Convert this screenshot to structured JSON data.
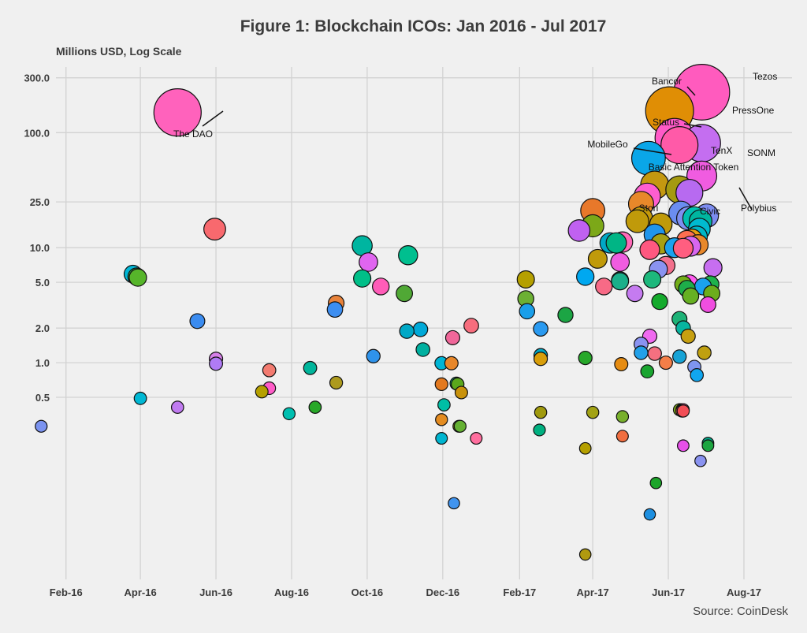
{
  "chart_data": {
    "type": "scatter",
    "title": "Figure 1: Blockchain ICOs: Jan 2016 - Jul 2017",
    "subtitle": "Millions USD, Log Scale",
    "source": "Source: CoinDesk",
    "y_scale": "log",
    "ylim": [
      0.02,
      450
    ],
    "xlim": [
      "2016-01-01",
      "2017-08-15"
    ],
    "grid": true,
    "legend": "none",
    "x_ticks": [
      {
        "date": "2016-02-01",
        "label": "Feb-16"
      },
      {
        "date": "2016-04-01",
        "label": "Apr-16"
      },
      {
        "date": "2016-06-01",
        "label": "Jun-16"
      },
      {
        "date": "2016-08-01",
        "label": "Aug-16"
      },
      {
        "date": "2016-10-01",
        "label": "Oct-16"
      },
      {
        "date": "2016-12-01",
        "label": "Dec-16"
      },
      {
        "date": "2017-02-01",
        "label": "Feb-17"
      },
      {
        "date": "2017-04-01",
        "label": "Apr-17"
      },
      {
        "date": "2017-06-01",
        "label": "Jun-17"
      },
      {
        "date": "2017-08-01",
        "label": "Aug-17"
      }
    ],
    "y_ticks": [
      {
        "value": 300,
        "label": "300.0"
      },
      {
        "value": 100,
        "label": "100.0"
      },
      {
        "value": 25,
        "label": "25.0"
      },
      {
        "value": 10,
        "label": "10.0"
      },
      {
        "value": 5,
        "label": "5.0"
      },
      {
        "value": 2,
        "label": "2.0"
      },
      {
        "value": 1,
        "label": "1.0"
      },
      {
        "value": 0.5,
        "label": "0.5"
      }
    ],
    "points": [
      {
        "date": "2016-01-12",
        "value": 0.28,
        "color": "#7B93F0"
      },
      {
        "date": "2016-03-26",
        "value": 5.9,
        "color": "#00B7D6"
      },
      {
        "date": "2016-03-29",
        "value": 5.6,
        "color": "#2FAA4A"
      },
      {
        "date": "2016-03-30",
        "value": 5.5,
        "color": "#56B52A"
      },
      {
        "date": "2016-04-01",
        "value": 0.49,
        "color": "#00B8D4"
      },
      {
        "date": "2016-05-01",
        "value": 0.41,
        "color": "#C07BF0"
      },
      {
        "date": "2016-05-01",
        "value": 150,
        "color": "#FF62BC",
        "label": "The DAO"
      },
      {
        "date": "2016-05-17",
        "value": 2.3,
        "color": "#3B8CF0"
      },
      {
        "date": "2016-05-31",
        "value": 14.5,
        "color": "#F8696E"
      },
      {
        "date": "2016-06-01",
        "value": 1.08,
        "color": "#D680E8"
      },
      {
        "date": "2016-06-01",
        "value": 0.98,
        "color": "#B07BF5"
      },
      {
        "date": "2016-07-08",
        "value": 0.56,
        "color": "#B5A000"
      },
      {
        "date": "2016-07-14",
        "value": 0.86,
        "color": "#F37B70"
      },
      {
        "date": "2016-07-14",
        "value": 0.6,
        "color": "#FF5CC8"
      },
      {
        "date": "2016-07-30",
        "value": 0.36,
        "color": "#00BFB0"
      },
      {
        "date": "2016-08-16",
        "value": 0.9,
        "color": "#00B59B"
      },
      {
        "date": "2016-08-20",
        "value": 0.41,
        "color": "#28A828"
      },
      {
        "date": "2016-09-06",
        "value": 0.67,
        "color": "#AD9A1E"
      },
      {
        "date": "2016-09-06",
        "value": 3.3,
        "color": "#E8823A"
      },
      {
        "date": "2016-09-05",
        "value": 2.9,
        "color": "#3D8EF0"
      },
      {
        "date": "2016-09-27",
        "value": 10.4,
        "color": "#00B5A0"
      },
      {
        "date": "2016-09-27",
        "value": 5.4,
        "color": "#00BF88"
      },
      {
        "date": "2016-10-02",
        "value": 7.5,
        "color": "#E065F0"
      },
      {
        "date": "2016-10-06",
        "value": 1.14,
        "color": "#2F93EB"
      },
      {
        "date": "2016-10-12",
        "value": 4.6,
        "color": "#FF5CB8"
      },
      {
        "date": "2016-10-31",
        "value": 4.0,
        "color": "#50A835"
      },
      {
        "date": "2016-11-02",
        "value": 1.88,
        "color": "#00A8C6"
      },
      {
        "date": "2016-11-03",
        "value": 8.6,
        "color": "#00BF8F"
      },
      {
        "date": "2016-11-13",
        "value": 1.95,
        "color": "#00A9D8"
      },
      {
        "date": "2016-11-15",
        "value": 1.3,
        "color": "#00B0A0"
      },
      {
        "date": "2016-11-30",
        "value": 0.99,
        "color": "#00B5D5"
      },
      {
        "date": "2016-11-30",
        "value": 0.65,
        "color": "#E3791F"
      },
      {
        "date": "2016-11-30",
        "value": 0.32,
        "color": "#E48C21"
      },
      {
        "date": "2016-11-30",
        "value": 0.22,
        "color": "#00B5D0"
      },
      {
        "date": "2016-12-02",
        "value": 0.43,
        "color": "#00BFA5"
      },
      {
        "date": "2016-12-08",
        "value": 0.99,
        "color": "#E8872A"
      },
      {
        "date": "2016-12-09",
        "value": 1.65,
        "color": "#F0679A"
      },
      {
        "date": "2016-12-10",
        "value": 0.06,
        "color": "#4094EF"
      },
      {
        "date": "2016-12-12",
        "value": 0.66,
        "color": "#0BB486"
      },
      {
        "date": "2016-12-13",
        "value": 0.65,
        "color": "#5BA81C"
      },
      {
        "date": "2016-12-14",
        "value": 0.28,
        "color": "#A09A0E"
      },
      {
        "date": "2016-12-15",
        "value": 0.28,
        "color": "#64B032"
      },
      {
        "date": "2016-12-16",
        "value": 0.55,
        "color": "#C9920B"
      },
      {
        "date": "2016-12-24",
        "value": 2.1,
        "color": "#F76D7D"
      },
      {
        "date": "2016-12-28",
        "value": 0.22,
        "color": "#FF6E9E"
      },
      {
        "date": "2017-02-06",
        "value": 5.3,
        "color": "#B5A000"
      },
      {
        "date": "2017-02-06",
        "value": 3.6,
        "color": "#6CB033"
      },
      {
        "date": "2017-02-07",
        "value": 2.8,
        "color": "#1A9FEA"
      },
      {
        "date": "2017-02-18",
        "value": 1.97,
        "color": "#2A9AF0"
      },
      {
        "date": "2017-02-18",
        "value": 1.16,
        "color": "#00A8C6"
      },
      {
        "date": "2017-02-18",
        "value": 1.08,
        "color": "#D89E0A"
      },
      {
        "date": "2017-02-18",
        "value": 0.37,
        "color": "#A09A0E"
      },
      {
        "date": "2017-02-17",
        "value": 0.26,
        "color": "#00B080"
      },
      {
        "date": "2017-03-10",
        "value": 2.6,
        "color": "#1CA544"
      },
      {
        "date": "2017-03-21",
        "value": 14.1,
        "color": "#C061F0"
      },
      {
        "date": "2017-03-26",
        "value": 5.6,
        "color": "#00A8F0"
      },
      {
        "date": "2017-03-26",
        "value": 1.1,
        "color": "#27A82A"
      },
      {
        "date": "2017-03-26",
        "value": 0.18,
        "color": "#B5A000"
      },
      {
        "date": "2017-03-26",
        "value": 0.0215,
        "color": "#B09A10"
      },
      {
        "date": "2017-04-01",
        "value": 21.0,
        "color": "#E8782A"
      },
      {
        "date": "2017-04-01",
        "value": 15.5,
        "color": "#7CA818"
      },
      {
        "date": "2017-04-01",
        "value": 0.37,
        "color": "#A2A214"
      },
      {
        "date": "2017-04-05",
        "value": 8.0,
        "color": "#C09A0A"
      },
      {
        "date": "2017-04-10",
        "value": 4.6,
        "color": "#F76A86"
      },
      {
        "date": "2017-04-15",
        "value": 11.0,
        "color": "#00A8C6"
      },
      {
        "date": "2017-04-20",
        "value": 11.0,
        "color": "#00B585"
      },
      {
        "date": "2017-04-25",
        "value": 11.2,
        "color": "#FF6AB8"
      },
      {
        "date": "2017-04-23",
        "value": 7.5,
        "color": "#F05CE0"
      },
      {
        "date": "2017-04-23",
        "value": 5.2,
        "color": "#00B890"
      },
      {
        "date": "2017-04-23",
        "value": 5.1,
        "color": "#1AAF8A"
      },
      {
        "date": "2017-04-24",
        "value": 0.97,
        "color": "#E68C12"
      },
      {
        "date": "2017-04-25",
        "value": 0.34,
        "color": "#78B02C"
      },
      {
        "date": "2017-04-25",
        "value": 0.23,
        "color": "#F06E40"
      },
      {
        "date": "2017-05-05",
        "value": 4.0,
        "color": "#C57BF0"
      },
      {
        "date": "2017-05-07",
        "value": 17.0,
        "color": "#C09A0A"
      },
      {
        "date": "2017-05-10",
        "value": 24.0,
        "color": "#E8882A"
      },
      {
        "date": "2017-05-10",
        "value": 18.0,
        "color": "#C59A0A"
      },
      {
        "date": "2017-05-10",
        "value": 1.45,
        "color": "#8A93F0"
      },
      {
        "date": "2017-05-10",
        "value": 1.22,
        "color": "#22A0E8"
      },
      {
        "date": "2017-05-15",
        "value": 28.0,
        "color": "#FF5ED0"
      },
      {
        "date": "2017-05-15",
        "value": 0.84,
        "color": "#1AA530"
      },
      {
        "date": "2017-05-17",
        "value": 9.6,
        "color": "#FF5880"
      },
      {
        "date": "2017-05-17",
        "value": 0.048,
        "color": "#1D8FE0"
      },
      {
        "date": "2017-05-17",
        "value": 1.7,
        "color": "#F06AF0"
      },
      {
        "date": "2017-05-16",
        "value": 60.0,
        "color": "#0AA6E8",
        "label": "MobileGo"
      },
      {
        "date": "2017-05-21",
        "value": 35.0,
        "color": "#C49810",
        "label": "Basic Attention Token"
      },
      {
        "date": "2017-05-21",
        "value": 13.0,
        "color": "#2095EB"
      },
      {
        "date": "2017-05-21",
        "value": 1.2,
        "color": "#F47080"
      },
      {
        "date": "2017-05-22",
        "value": 0.09,
        "color": "#1CA52A"
      },
      {
        "date": "2017-05-19",
        "value": 5.3,
        "color": "#1DB87C"
      },
      {
        "date": "2017-05-24",
        "value": 6.5,
        "color": "#8A93F0"
      },
      {
        "date": "2017-05-25",
        "value": 3.4,
        "color": "#14AA2C"
      },
      {
        "date": "2017-05-26",
        "value": 10.8,
        "color": "#A6A014"
      },
      {
        "date": "2017-05-30",
        "value": 7.0,
        "color": "#F3708C"
      },
      {
        "date": "2017-05-30",
        "value": 1.0,
        "color": "#F47E48"
      },
      {
        "date": "2017-06-02",
        "value": 155.0,
        "color": "#E08E05",
        "label": "Bancor"
      },
      {
        "date": "2017-06-06",
        "value": 90.0,
        "color": "#FF5AC8",
        "label": "Status"
      },
      {
        "date": "2017-06-10",
        "value": 78.0,
        "color": "#FF5AA8",
        "label": "TenX"
      },
      {
        "date": "2017-06-06",
        "value": 10.0,
        "color": "#1AA2EF"
      },
      {
        "date": "2017-06-10",
        "value": 32.0,
        "color": "#A59A10"
      },
      {
        "date": "2017-06-11",
        "value": 20.0,
        "color": "#6B8DF0"
      },
      {
        "date": "2017-06-10",
        "value": 2.4,
        "color": "#1DB277"
      },
      {
        "date": "2017-06-10",
        "value": 1.13,
        "color": "#16A3D6"
      },
      {
        "date": "2017-06-10",
        "value": 0.39,
        "color": "#80AC1A"
      },
      {
        "date": "2017-06-12",
        "value": 0.38,
        "color": "#F4646E"
      },
      {
        "date": "2017-06-12",
        "value": 0.39,
        "color": "#2FAA34"
      },
      {
        "date": "2017-06-13",
        "value": 0.39,
        "color": "#FF5EA0"
      },
      {
        "date": "2017-06-13",
        "value": 0.38,
        "color": "#F24E56"
      },
      {
        "date": "2017-06-13",
        "value": 2.0,
        "color": "#07B5A0"
      },
      {
        "date": "2017-06-13",
        "value": 0.19,
        "color": "#E650E8"
      },
      {
        "date": "2017-06-13",
        "value": 9.9,
        "color": "#FF5E80"
      },
      {
        "date": "2017-06-13",
        "value": 4.8,
        "color": "#72AE18"
      },
      {
        "date": "2017-06-16",
        "value": 4.4,
        "color": "#1EAE4A"
      },
      {
        "date": "2017-06-16",
        "value": 11.5,
        "color": "#FF6E50"
      },
      {
        "date": "2017-06-17",
        "value": 1.7,
        "color": "#C7A010"
      },
      {
        "date": "2017-06-17",
        "value": 18.0,
        "color": "#7E8FF0"
      },
      {
        "date": "2017-06-18",
        "value": 30.0,
        "color": "#B76AF0"
      },
      {
        "date": "2017-06-18",
        "value": 4.9,
        "color": "#FF5CF0"
      },
      {
        "date": "2017-06-19",
        "value": 3.8,
        "color": "#66B022"
      },
      {
        "date": "2017-06-19",
        "value": 10.3,
        "color": "#D866F0"
      },
      {
        "date": "2017-06-20",
        "value": 11.8,
        "color": "#E8A010"
      },
      {
        "date": "2017-06-22",
        "value": 0.92,
        "color": "#7E95F0"
      },
      {
        "date": "2017-06-24",
        "value": 0.78,
        "color": "#10A6F0"
      },
      {
        "date": "2017-06-24",
        "value": 12.5,
        "color": "#00B7C7"
      },
      {
        "date": "2017-06-25",
        "value": 10.6,
        "color": "#E8882A"
      },
      {
        "date": "2017-06-26",
        "value": 14.5,
        "color": "#00BBD0"
      },
      {
        "date": "2017-06-27",
        "value": 17.0,
        "color": "#00B6A0"
      },
      {
        "date": "2017-06-27",
        "value": 0.14,
        "color": "#8A93F0"
      },
      {
        "date": "2017-06-28",
        "value": 225.0,
        "color": "#FF5BBE",
        "label": "Tezos"
      },
      {
        "date": "2017-06-28",
        "value": 81.0,
        "color": "#C46EF0",
        "label": "PressOne"
      },
      {
        "date": "2017-06-28",
        "value": 42.0,
        "color": "#F05CE0",
        "label": "SONM"
      },
      {
        "date": "2017-06-29",
        "value": 4.6,
        "color": "#1AA2EF"
      },
      {
        "date": "2017-06-30",
        "value": 1.22,
        "color": "#C0A010"
      },
      {
        "date": "2017-07-02",
        "value": 19.0,
        "color": "#7C8CF0",
        "label": "Polybius"
      },
      {
        "date": "2017-07-03",
        "value": 3.2,
        "color": "#F04EE0"
      },
      {
        "date": "2017-07-03",
        "value": 0.2,
        "color": "#00AE8C"
      },
      {
        "date": "2017-07-03",
        "value": 0.19,
        "color": "#1DA540"
      },
      {
        "date": "2017-07-05",
        "value": 4.8,
        "color": "#1EB24C"
      },
      {
        "date": "2017-07-06",
        "value": 4.0,
        "color": "#6CAE1C"
      },
      {
        "date": "2017-07-07",
        "value": 6.7,
        "color": "#C76EF0"
      },
      {
        "date": "2017-05-26",
        "value": 16.0,
        "color": "#C09A0A",
        "label": "Stori"
      },
      {
        "date": "2017-06-22",
        "value": 18.0,
        "color": "#00BFB0",
        "label": "Civic"
      }
    ]
  }
}
